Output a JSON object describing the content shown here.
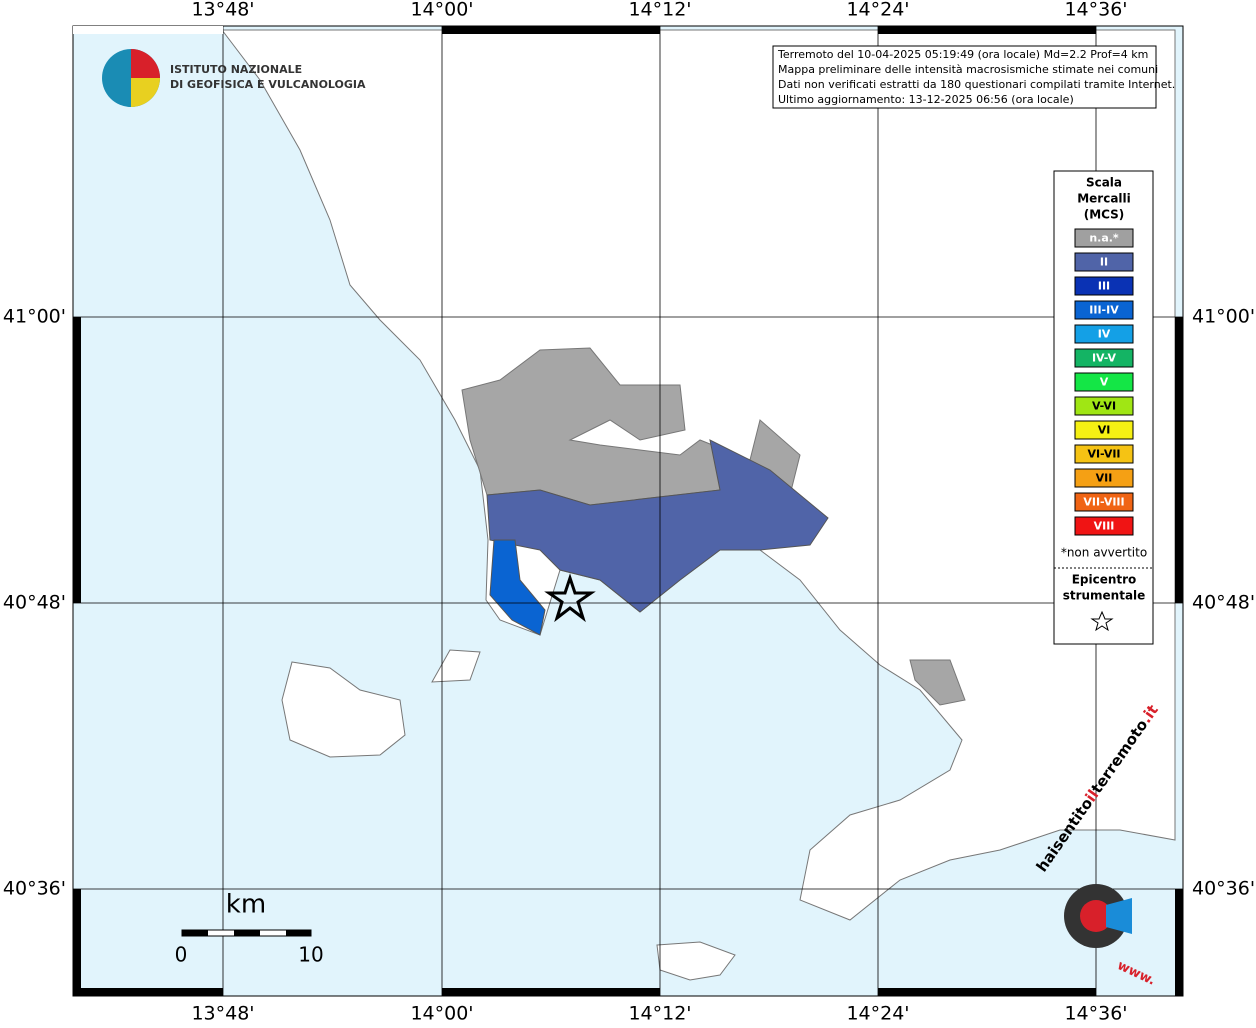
{
  "header": {
    "lines": [
      "Terremoto del 10-04-2025 05:19:49 (ora locale) Md=2.2 Prof=4 km",
      "Mappa preliminare delle intensità macrosismiche stimate nei comuni",
      "Dati non verificati estratti da 180 questionari compilati tramite Internet.",
      "Ultimo aggiornamento: 13-12-2025 06:56 (ora locale)"
    ]
  },
  "logo": {
    "line1": "ISTITUTO NAZIONALE",
    "line2": "DI GEOFISICA E VULCANOLOGIA"
  },
  "axes": {
    "longitudes": [
      "13°48'",
      "14°00'",
      "14°12'",
      "14°24'",
      "14°36'"
    ],
    "latitudes": [
      "41°00'",
      "40°48'",
      "40°36'"
    ]
  },
  "legend": {
    "title_lines": [
      "Scala",
      "Mercalli",
      "(MCS)"
    ],
    "classes": [
      {
        "label": "n.a.*",
        "color": "#a0a0a0"
      },
      {
        "label": "II",
        "color": "#5064a8"
      },
      {
        "label": "III",
        "color": "#0a32b4"
      },
      {
        "label": "III-IV",
        "color": "#0a64d2"
      },
      {
        "label": "IV",
        "color": "#14a0e6"
      },
      {
        "label": "IV-V",
        "color": "#14b464"
      },
      {
        "label": "V",
        "color": "#14e646"
      },
      {
        "label": "V-VI",
        "color": "#a0e614"
      },
      {
        "label": "VI",
        "color": "#f5f014"
      },
      {
        "label": "VI-VII",
        "color": "#f5c314"
      },
      {
        "label": "VII",
        "color": "#f5a014"
      },
      {
        "label": "VII-VIII",
        "color": "#f06414"
      },
      {
        "label": "VIII",
        "color": "#f01414"
      }
    ],
    "note": "*non avvertito",
    "epicenter_lines": [
      "Epicentro",
      "strumentale"
    ]
  },
  "scale_bar": {
    "unit": "km",
    "labels": [
      "0",
      "10"
    ]
  },
  "badge": {
    "part1": "haisentito",
    "part2": "il",
    "part3": "terremoto",
    "part4": ".it",
    "www": "www."
  }
}
